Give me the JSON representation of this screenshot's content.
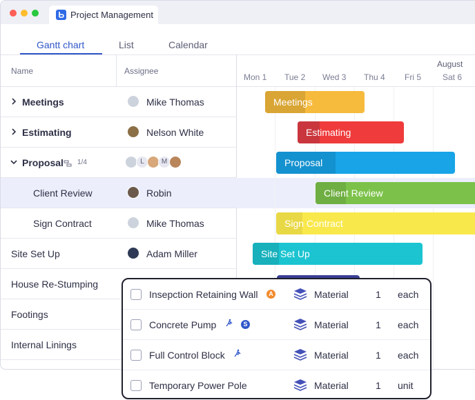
{
  "browser": {
    "tab_title": "Project Management"
  },
  "views": [
    "Gantt chart",
    "List",
    "Calendar"
  ],
  "headers": {
    "name": "Name",
    "assignee": "Assignee"
  },
  "timeline": {
    "month": "August",
    "days": [
      "Mon 1",
      "Tue 2",
      "Wed 3",
      "Thu 4",
      "Fri 5",
      "Sat 6"
    ]
  },
  "rows": [
    {
      "name": "Meetings",
      "assignee": "Mike Thomas"
    },
    {
      "name": "Estimating",
      "assignee": "Nelson White"
    },
    {
      "name": "Proposal",
      "subtask_count": "1/4",
      "avatars": [
        "L",
        "M"
      ]
    },
    {
      "name": "Client Review",
      "assignee": "Robin"
    },
    {
      "name": "Sign Contract",
      "assignee": "Mike Thomas"
    },
    {
      "name": "Site Set Up",
      "assignee": "Adam Miller"
    },
    {
      "name": "House Re-Stumping"
    },
    {
      "name": "Footings"
    },
    {
      "name": "Internal Linings"
    }
  ],
  "bars": [
    {
      "label": "Meetings",
      "color": "#f6bb3c",
      "progress_color": "#d9a534"
    },
    {
      "label": "Estimating",
      "color": "#ef3b3b",
      "progress_color": "#c9363d"
    },
    {
      "label": "Proposal",
      "color": "#18a4e6",
      "progress_color": "#1491cf"
    },
    {
      "label": "Client Review",
      "color": "#7cc24a",
      "progress_color": "#6fae42"
    },
    {
      "label": "Sign Contract",
      "color": "#f9e84c",
      "progress_color": "#e9d846"
    },
    {
      "label": "Site Set Up",
      "color": "#1bc4d0",
      "progress_color": "#17b0bb"
    },
    {
      "label": "",
      "color": "#3a3f95",
      "progress_color": "#3a3f95"
    }
  ],
  "materials": [
    {
      "name": "Insepction Retaining Wall",
      "badges": [
        "A"
      ],
      "type": "Material",
      "qty": "1",
      "unit": "each"
    },
    {
      "name": "Concrete Pump",
      "badges": [
        "S"
      ],
      "type": "Material",
      "qty": "1",
      "unit": "each"
    },
    {
      "name": "Full Control Block",
      "badges": [],
      "type": "Material",
      "qty": "1",
      "unit": "each"
    },
    {
      "name": "Temporary Power Pole",
      "badges": [],
      "type": "Material",
      "qty": "1",
      "unit": "unit"
    }
  ]
}
